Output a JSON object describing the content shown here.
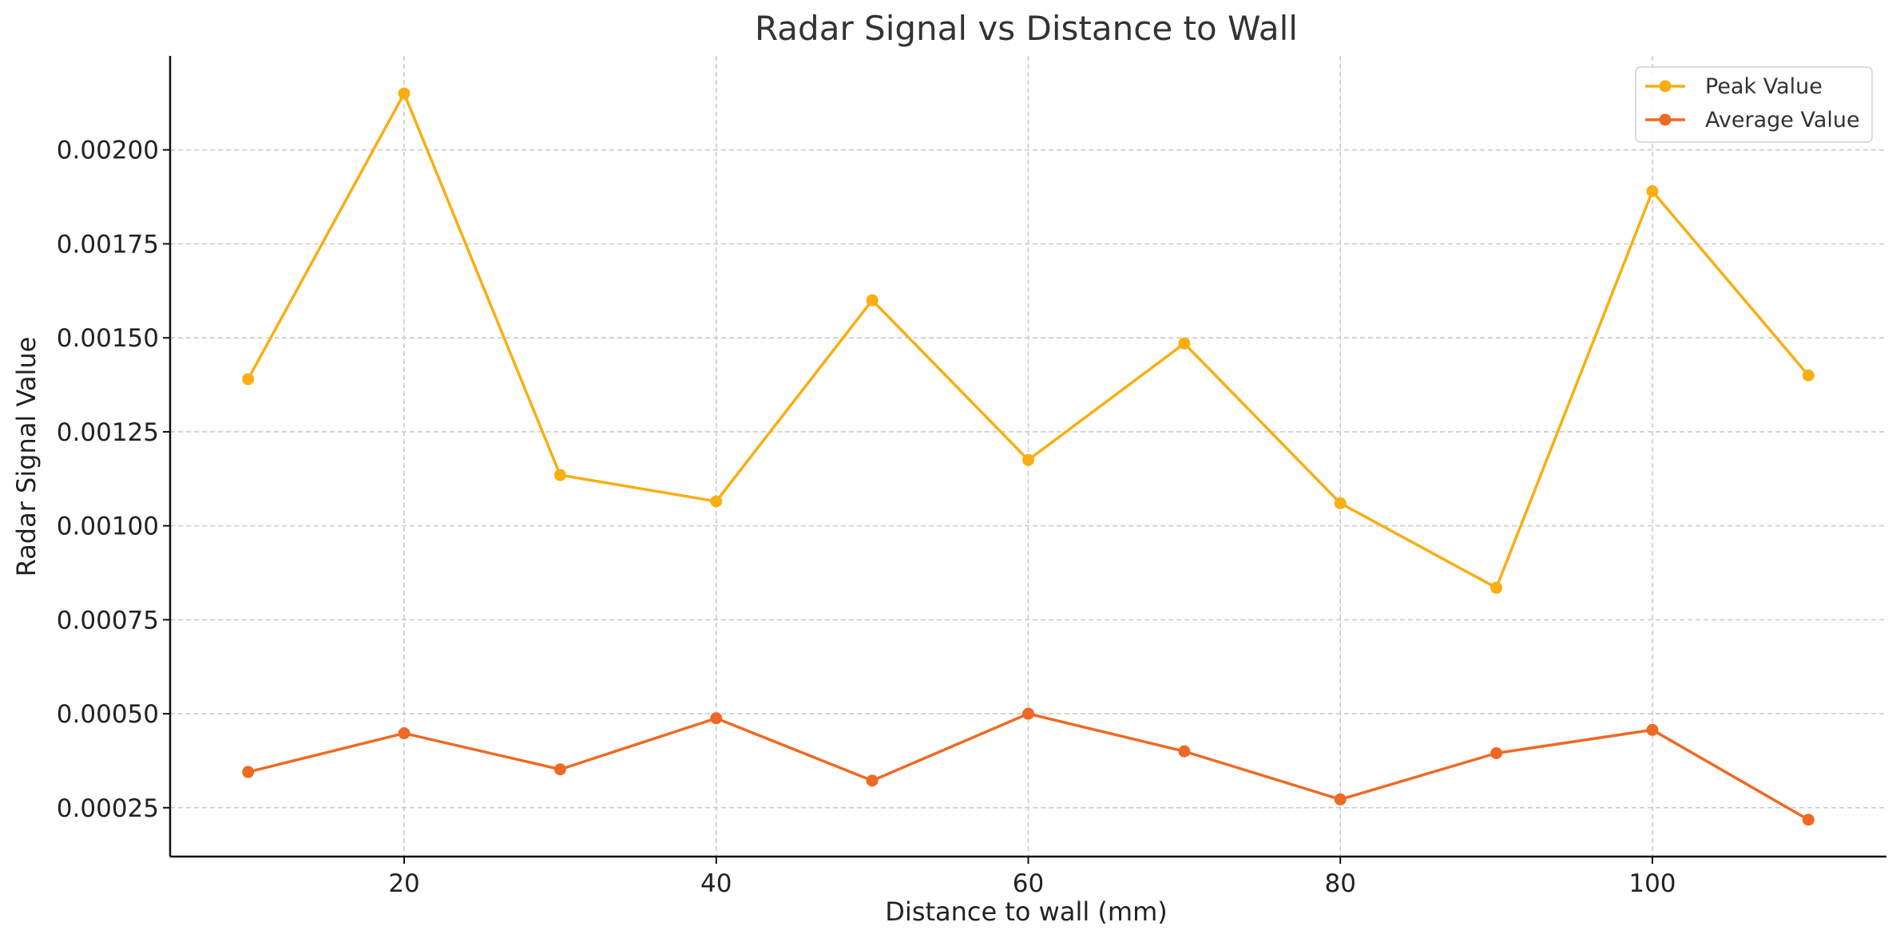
{
  "chart_data": {
    "type": "line",
    "title": "Radar Signal vs Distance to Wall",
    "xlabel": "Distance to wall (mm)",
    "ylabel": "Radar Signal Value",
    "x": [
      10,
      20,
      30,
      40,
      50,
      60,
      70,
      80,
      90,
      100,
      110
    ],
    "xlim": [
      5,
      115
    ],
    "ylim": [
      0.00012,
      0.00225
    ],
    "x_ticks": [
      {
        "value": 20,
        "label": "20"
      },
      {
        "value": 40,
        "label": "40"
      },
      {
        "value": 60,
        "label": "60"
      },
      {
        "value": 80,
        "label": "80"
      },
      {
        "value": 100,
        "label": "100"
      }
    ],
    "y_ticks": [
      {
        "value": 0.00025,
        "label": "0.00025"
      },
      {
        "value": 0.0005,
        "label": "0.00050"
      },
      {
        "value": 0.00075,
        "label": "0.00075"
      },
      {
        "value": 0.001,
        "label": "0.00100"
      },
      {
        "value": 0.00125,
        "label": "0.00125"
      },
      {
        "value": 0.0015,
        "label": "0.00150"
      },
      {
        "value": 0.00175,
        "label": "0.00175"
      },
      {
        "value": 0.002,
        "label": "0.00200"
      }
    ],
    "grid": true,
    "legend_position": "top-right",
    "series": [
      {
        "name": "Peak Value",
        "color": "#F9AE12",
        "values": [
          0.00139,
          0.00215,
          0.001135,
          0.001065,
          0.0016,
          0.001175,
          0.001485,
          0.00106,
          0.000835,
          0.00189,
          0.0014
        ]
      },
      {
        "name": "Average Value",
        "color": "#EE6A24",
        "values": [
          0.000345,
          0.000448,
          0.000352,
          0.000488,
          0.000322,
          0.0005,
          0.0004,
          0.000272,
          0.000395,
          0.000457,
          0.000218
        ]
      }
    ]
  }
}
